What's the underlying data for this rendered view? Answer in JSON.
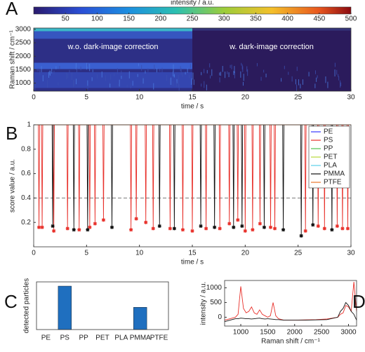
{
  "chart_data": [
    {
      "type": "heatmap",
      "panel": "A",
      "colorbar_label": "intensity / a.u.",
      "colorbar_lim": [
        0,
        500
      ],
      "colorbar_ticks": [
        50,
        100,
        150,
        200,
        250,
        300,
        350,
        400,
        450,
        500
      ],
      "xlabel": "time / s",
      "ylabel": "Raman shift / cm⁻¹",
      "xlim": [
        0,
        30
      ],
      "xticks": [
        0,
        5,
        10,
        15,
        20,
        25,
        30
      ],
      "ylim": [
        700,
        3050
      ],
      "yticks": [
        1000,
        1500,
        2000,
        2500,
        3000
      ],
      "annotations": [
        "w.o. dark-image correction",
        "w. dark-image correction"
      ]
    },
    {
      "type": "line",
      "panel": "B",
      "xlabel": "time / s",
      "ylabel": "score value / a.u.",
      "xlim": [
        0,
        30
      ],
      "xticks": [
        0,
        5,
        10,
        15,
        20,
        25,
        30
      ],
      "ylim": [
        0,
        1
      ],
      "yticks": [
        0.2,
        0.4,
        0.6,
        0.8,
        1
      ],
      "threshold": 0.4,
      "legend": "upper right",
      "markers": true,
      "series": [
        {
          "name": "PE",
          "color": "#3a3aff",
          "x": [
            0,
            30
          ],
          "values": [
            1,
            1
          ]
        },
        {
          "name": "PS",
          "color": "#e8302a",
          "x": [
            0,
            0.44,
            0.5,
            0.56,
            0.74,
            0.8,
            0.86,
            1.84,
            1.9,
            1.96,
            3.14,
            3.2,
            3.26,
            4.24,
            4.3,
            4.36,
            5.24,
            5.3,
            5.36,
            5.74,
            5.8,
            5.86,
            6.54,
            6.6,
            6.66,
            9.14,
            9.2,
            9.26,
            9.64,
            9.7,
            9.76,
            10.54,
            10.6,
            10.66,
            11.24,
            11.3,
            11.36,
            12.84,
            12.9,
            12.96,
            14.04,
            14.1,
            14.16,
            14.94,
            15,
            15.06,
            16.24,
            16.3,
            16.36,
            17.54,
            17.6,
            17.66,
            18.44,
            18.5,
            18.56,
            19.24,
            19.3,
            19.36,
            19.94,
            20,
            20.06,
            20.64,
            20.7,
            20.76,
            21.34,
            21.4,
            21.46,
            22.34,
            22.4,
            22.46,
            22.74,
            22.8,
            22.86,
            25.64,
            25.7,
            25.76,
            26.84,
            26.9,
            26.96,
            27.44,
            27.5,
            27.56,
            28.64,
            28.7,
            28.76,
            29.14,
            29.2,
            29.26,
            29.64,
            29.7,
            29.76,
            30
          ],
          "values": [
            1,
            1,
            0.16,
            1,
            1,
            0.16,
            1,
            1,
            0.13,
            1,
            1,
            0.15,
            1,
            1,
            0.14,
            1,
            1,
            0.16,
            1,
            1,
            0.19,
            1,
            1,
            0.22,
            1,
            1,
            0.14,
            1,
            1,
            0.23,
            1,
            1,
            0.2,
            1,
            1,
            0.15,
            1,
            1,
            0.15,
            1,
            1,
            0.14,
            1,
            1,
            0.13,
            1,
            1,
            0.15,
            1,
            1,
            0.15,
            1,
            1,
            0.19,
            1,
            1,
            0.22,
            1,
            1,
            0.13,
            1,
            1,
            0.14,
            1,
            1,
            0.19,
            1,
            1,
            0.16,
            1,
            1,
            0.15,
            1,
            1,
            0.13,
            1,
            1,
            0.17,
            1,
            1,
            0.15,
            1,
            1,
            0.17,
            1,
            1,
            0.15,
            1,
            1,
            0.15,
            1,
            1
          ]
        },
        {
          "name": "PP",
          "color": "#4fc24f",
          "x": [
            0,
            30
          ],
          "values": [
            1,
            1
          ]
        },
        {
          "name": "PET",
          "color": "#b8d838",
          "x": [
            0,
            30
          ],
          "values": [
            1,
            1
          ]
        },
        {
          "name": "PLA",
          "color": "#5bd0e8",
          "x": [
            0,
            30
          ],
          "values": [
            1,
            1
          ]
        },
        {
          "name": "PMMA",
          "color": "#111111",
          "x": [
            0,
            1.74,
            1.8,
            1.86,
            3.74,
            3.8,
            3.86,
            5.04,
            5.1,
            5.16,
            7.34,
            7.4,
            7.46,
            11.84,
            11.9,
            11.96,
            13.24,
            13.3,
            13.36,
            15.74,
            15.8,
            15.86,
            17.04,
            17.1,
            17.16,
            18.84,
            18.9,
            18.96,
            19.64,
            19.7,
            19.76,
            21.74,
            21.8,
            21.86,
            23.54,
            23.6,
            23.66,
            25.24,
            25.3,
            25.36,
            26.34,
            26.4,
            26.46,
            28.14,
            28.2,
            28.26,
            30
          ],
          "values": [
            1,
            1,
            0.17,
            1,
            1,
            0.14,
            1,
            1,
            0.14,
            1,
            1,
            0.16,
            1,
            1,
            0.17,
            1,
            1,
            0.15,
            1,
            1,
            0.17,
            1,
            1,
            0.16,
            1,
            1,
            0.16,
            1,
            1,
            0.17,
            1,
            1,
            0.16,
            1,
            1,
            0.14,
            1,
            1,
            0.09,
            1,
            1,
            0.18,
            1,
            1,
            0.14,
            1,
            1
          ]
        },
        {
          "name": "PTFE",
          "color": "#e8762a",
          "x": [
            0,
            30
          ],
          "values": [
            1,
            1
          ]
        }
      ]
    },
    {
      "type": "bar",
      "panel": "C",
      "ylabel": "detected particles",
      "color": "#1f6fbf",
      "categories": [
        "PE",
        "PS",
        "PP",
        "PET",
        "PLA",
        "PMMA",
        "PTFE"
      ],
      "values": [
        0,
        41,
        0,
        0,
        0,
        21,
        0
      ],
      "ylim": [
        0,
        45
      ]
    },
    {
      "type": "line",
      "panel": "D",
      "xlabel": "Raman shift / cm⁻¹",
      "ylabel": "intensity / a.u.",
      "xlim": [
        700,
        3150
      ],
      "xticks": [
        1000,
        1500,
        2000,
        2500,
        3000
      ],
      "ylim": [
        -300,
        1250
      ],
      "yticks": [
        0,
        500,
        1000
      ],
      "x": [
        700,
        800,
        900,
        950,
        1000,
        1050,
        1100,
        1150,
        1200,
        1250,
        1300,
        1350,
        1400,
        1450,
        1500,
        1550,
        1600,
        1650,
        1700,
        1800,
        2000,
        2200,
        2400,
        2600,
        2800,
        2850,
        2900,
        2950,
        3000,
        3050,
        3100,
        3150
      ],
      "series": [
        {
          "color": "#e8302a",
          "values": [
            -100,
            -50,
            0,
            100,
            1050,
            300,
            150,
            200,
            350,
            150,
            100,
            250,
            100,
            50,
            0,
            50,
            500,
            50,
            -50,
            -100,
            -100,
            -90,
            -80,
            -60,
            0,
            100,
            150,
            400,
            350,
            200,
            1200,
            200
          ]
        },
        {
          "color": "#111111",
          "values": [
            -150,
            -100,
            -50,
            -50,
            -30,
            -40,
            -50,
            -50,
            -60,
            -50,
            -40,
            -30,
            -50,
            -60,
            -50,
            -60,
            -70,
            -80,
            -80,
            -100,
            -100,
            -100,
            -90,
            -80,
            0,
            200,
            300,
            500,
            400,
            200,
            100,
            -100
          ]
        }
      ]
    }
  ]
}
